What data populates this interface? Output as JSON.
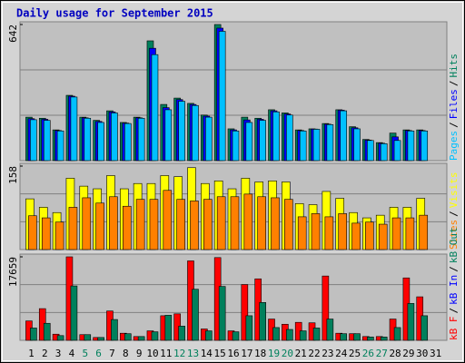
{
  "chart_data": {
    "type": "bar",
    "title": "Daily usage for September 2015",
    "categories": [
      "1",
      "2",
      "3",
      "4",
      "5",
      "6",
      "7",
      "8",
      "9",
      "10",
      "11",
      "12",
      "13",
      "14",
      "15",
      "16",
      "17",
      "18",
      "19",
      "20",
      "21",
      "22",
      "23",
      "24",
      "25",
      "26",
      "27",
      "28",
      "29",
      "30",
      "31"
    ],
    "category_colors": [
      "#000000",
      "#000000",
      "#000000",
      "#000000",
      "#00805c",
      "#00805c",
      "#000000",
      "#000000",
      "#000000",
      "#000000",
      "#000000",
      "#00805c",
      "#00805c",
      "#000000",
      "#000000",
      "#000000",
      "#000000",
      "#000000",
      "#00805c",
      "#00805c",
      "#000000",
      "#000000",
      "#000000",
      "#000000",
      "#000000",
      "#00805c",
      "#00805c",
      "#000000",
      "#000000",
      "#000000",
      "#000000"
    ],
    "separator": "/",
    "panels": [
      {
        "ylim": [
          0,
          642
        ],
        "yticks": [
          642
        ],
        "legend_reversed": true,
        "series": [
          {
            "name": "Hits",
            "color": "#00805c",
            "values": [
              205,
              200,
              145,
              308,
              205,
              190,
              235,
              180,
              205,
              565,
              265,
              295,
              270,
              215,
              642,
              150,
              205,
              200,
              240,
              225,
              145,
              150,
              175,
              240,
              160,
              100,
              85,
              130,
              145,
              145,
              0
            ]
          },
          {
            "name": "Files",
            "color": "#0000ff",
            "values": [
              198,
              195,
              142,
              304,
              202,
              185,
              230,
              177,
              202,
              530,
              250,
              288,
              265,
              210,
              625,
              145,
              192,
              195,
              235,
              220,
              142,
              149,
              172,
              238,
              155,
              97,
              82,
              112,
              142,
              142,
              0
            ]
          },
          {
            "name": "Pages",
            "color": "#00c0ff",
            "values": [
              193,
              190,
              140,
              300,
              200,
              180,
              225,
              175,
              200,
              500,
              240,
              280,
              260,
              205,
              610,
              140,
              180,
              190,
              230,
              215,
              140,
              148,
              170,
              235,
              150,
              95,
              80,
              95,
              140,
              140,
              0
            ]
          }
        ]
      },
      {
        "ylim": [
          0,
          158
        ],
        "yticks": [
          158
        ],
        "legend_reversed": true,
        "series": [
          {
            "name": "Visits",
            "color": "#ffff00",
            "values": [
              96,
              80,
              70,
              135,
              120,
              115,
              140,
              115,
              125,
              125,
              140,
              138,
              155,
              125,
              130,
              115,
              135,
              128,
              130,
              128,
              87,
              85,
              110,
              97,
              70,
              60,
              65,
              80,
              80,
              97,
              0
            ]
          },
          {
            "name": "Sites",
            "color": "#ff8000",
            "values": [
              64,
              60,
              52,
              80,
              98,
              88,
              100,
              82,
              95,
              95,
              112,
              95,
              92,
              95,
              100,
              100,
              105,
              100,
              98,
              95,
              62,
              68,
              62,
              68,
              50,
              52,
              48,
              60,
              60,
              65,
              0
            ]
          }
        ]
      },
      {
        "ylim": [
          0,
          17659
        ],
        "yticks": [
          17659
        ],
        "legend_reversed": false,
        "series": [
          {
            "name": "kB F",
            "color": "#ff0000",
            "values": [
              4100,
              6700,
              1300,
              17659,
              1200,
              600,
              6200,
              1500,
              800,
              2000,
              5200,
              5600,
              16800,
              2400,
              17500,
              2000,
              11800,
              13000,
              4500,
              3400,
              3800,
              3700,
              13600,
              1500,
              1400,
              800,
              800,
              4500,
              13200,
              9200,
              0
            ]
          },
          {
            "name": "kB In",
            "color": "#0000ff",
            "values": [
              0,
              0,
              0,
              0,
              0,
              0,
              0,
              0,
              0,
              0,
              0,
              0,
              0,
              0,
              0,
              0,
              0,
              0,
              0,
              0,
              0,
              0,
              0,
              0,
              0,
              0,
              0,
              0,
              0,
              0,
              0
            ]
          },
          {
            "name": "kB Out",
            "color": "#00805c",
            "values": [
              2600,
              3600,
              1000,
              11500,
              1200,
              600,
              4400,
              1400,
              800,
              1800,
              5300,
              3000,
              10800,
              2000,
              11400,
              1800,
              5200,
              8000,
              2700,
              2300,
              2000,
              2600,
              4500,
              1400,
              1400,
              700,
              700,
              2700,
              7800,
              5200,
              0
            ]
          }
        ]
      }
    ]
  }
}
